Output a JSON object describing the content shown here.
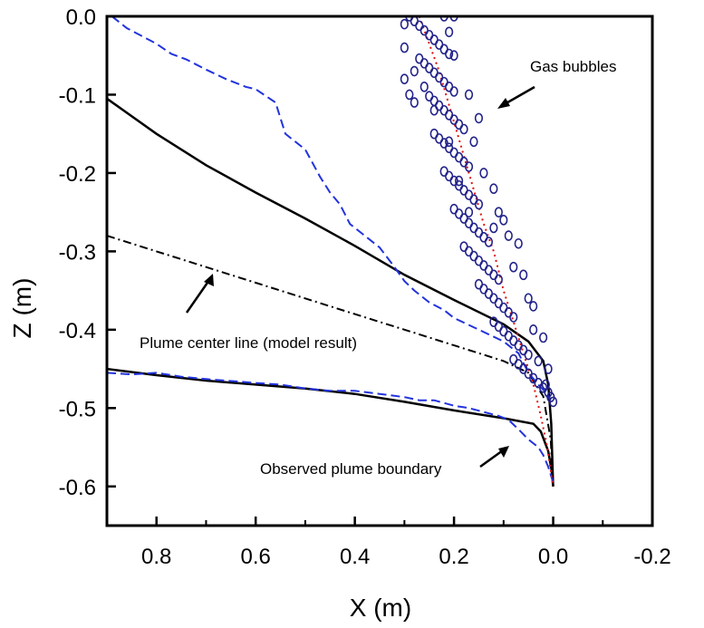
{
  "chart_data": {
    "type": "line",
    "title": "",
    "xlabel": "X (m)",
    "ylabel": "Z (m)",
    "xlim": [
      0.9,
      -0.2
    ],
    "ylim": [
      -0.65,
      0.0
    ],
    "x_reversed": true,
    "grid": false,
    "xticks": [
      0.8,
      0.6,
      0.4,
      0.2,
      0.0,
      -0.2
    ],
    "xtick_labels": [
      "0.8",
      "0.6",
      "0.4",
      "0.2",
      "0.0",
      "-0.2"
    ],
    "yticks": [
      0.0,
      -0.1,
      -0.2,
      -0.3,
      -0.4,
      -0.5,
      -0.6
    ],
    "ytick_labels": [
      "0.0",
      "-0.1",
      "-0.2",
      "-0.3",
      "-0.4",
      "-0.5",
      "-0.6"
    ],
    "series": [
      {
        "style": "solid",
        "color": "#000000",
        "points": [
          [
            0.9,
            -0.105
          ],
          [
            0.8,
            -0.15
          ],
          [
            0.7,
            -0.19
          ],
          [
            0.6,
            -0.225
          ],
          [
            0.5,
            -0.258
          ],
          [
            0.4,
            -0.293
          ],
          [
            0.3,
            -0.33
          ],
          [
            0.2,
            -0.362
          ],
          [
            0.1,
            -0.393
          ],
          [
            0.05,
            -0.415
          ],
          [
            0.02,
            -0.44
          ],
          [
            0.01,
            -0.47
          ],
          [
            0.004,
            -0.52
          ],
          [
            0.0,
            -0.6
          ]
        ]
      },
      {
        "style": "solid",
        "color": "#000000",
        "points": [
          [
            0.9,
            -0.45
          ],
          [
            0.8,
            -0.458
          ],
          [
            0.7,
            -0.465
          ],
          [
            0.6,
            -0.47
          ],
          [
            0.5,
            -0.475
          ],
          [
            0.4,
            -0.482
          ],
          [
            0.3,
            -0.492
          ],
          [
            0.2,
            -0.503
          ],
          [
            0.1,
            -0.513
          ],
          [
            0.04,
            -0.52
          ],
          [
            0.025,
            -0.53
          ],
          [
            0.01,
            -0.555
          ],
          [
            0.003,
            -0.58
          ],
          [
            0.0,
            -0.6
          ]
        ]
      },
      {
        "style": "dashdot",
        "color": "#000000",
        "points": [
          [
            0.9,
            -0.28
          ],
          [
            0.8,
            -0.3
          ],
          [
            0.7,
            -0.32
          ],
          [
            0.6,
            -0.34
          ],
          [
            0.5,
            -0.36
          ],
          [
            0.4,
            -0.38
          ],
          [
            0.3,
            -0.4
          ],
          [
            0.2,
            -0.42
          ],
          [
            0.1,
            -0.44
          ],
          [
            0.05,
            -0.455
          ],
          [
            0.02,
            -0.485
          ],
          [
            0.005,
            -0.54
          ],
          [
            0.0,
            -0.6
          ]
        ]
      },
      {
        "style": "dashed",
        "color": "#2233dd",
        "points": [
          [
            0.89,
            0.0
          ],
          [
            0.86,
            -0.015
          ],
          [
            0.8,
            -0.035
          ],
          [
            0.77,
            -0.048
          ],
          [
            0.74,
            -0.055
          ],
          [
            0.7,
            -0.068
          ],
          [
            0.66,
            -0.08
          ],
          [
            0.62,
            -0.09
          ],
          [
            0.6,
            -0.093
          ],
          [
            0.56,
            -0.11
          ],
          [
            0.54,
            -0.15
          ],
          [
            0.5,
            -0.17
          ],
          [
            0.47,
            -0.205
          ],
          [
            0.45,
            -0.225
          ],
          [
            0.43,
            -0.24
          ],
          [
            0.41,
            -0.265
          ],
          [
            0.38,
            -0.28
          ],
          [
            0.35,
            -0.295
          ],
          [
            0.32,
            -0.32
          ],
          [
            0.3,
            -0.338
          ],
          [
            0.28,
            -0.35
          ],
          [
            0.25,
            -0.365
          ],
          [
            0.22,
            -0.375
          ],
          [
            0.2,
            -0.385
          ],
          [
            0.15,
            -0.4
          ],
          [
            0.1,
            -0.415
          ],
          [
            0.07,
            -0.43
          ],
          [
            0.05,
            -0.455
          ],
          [
            0.03,
            -0.47
          ],
          [
            0.015,
            -0.48
          ],
          [
            0.005,
            -0.49
          ]
        ]
      },
      {
        "style": "dashed",
        "color": "#2233dd",
        "points": [
          [
            0.9,
            -0.455
          ],
          [
            0.85,
            -0.457
          ],
          [
            0.8,
            -0.455
          ],
          [
            0.75,
            -0.46
          ],
          [
            0.7,
            -0.463
          ],
          [
            0.6,
            -0.468
          ],
          [
            0.55,
            -0.47
          ],
          [
            0.5,
            -0.475
          ],
          [
            0.45,
            -0.478
          ],
          [
            0.4,
            -0.478
          ],
          [
            0.35,
            -0.482
          ],
          [
            0.3,
            -0.486
          ],
          [
            0.27,
            -0.49
          ],
          [
            0.24,
            -0.49
          ],
          [
            0.2,
            -0.497
          ],
          [
            0.17,
            -0.5
          ],
          [
            0.14,
            -0.505
          ],
          [
            0.11,
            -0.51
          ],
          [
            0.09,
            -0.515
          ],
          [
            0.07,
            -0.527
          ],
          [
            0.05,
            -0.54
          ],
          [
            0.03,
            -0.55
          ],
          [
            0.02,
            -0.56
          ],
          [
            0.01,
            -0.575
          ],
          [
            0.0,
            -0.595
          ]
        ]
      },
      {
        "style": "dotted",
        "color": "#dd1111",
        "points": [
          [
            0.27,
            0.0
          ],
          [
            0.23,
            -0.07
          ],
          [
            0.2,
            -0.135
          ],
          [
            0.17,
            -0.2
          ],
          [
            0.14,
            -0.265
          ],
          [
            0.12,
            -0.3
          ],
          [
            0.1,
            -0.35
          ],
          [
            0.08,
            -0.39
          ],
          [
            0.06,
            -0.43
          ],
          [
            0.04,
            -0.47
          ],
          [
            0.025,
            -0.51
          ],
          [
            0.012,
            -0.55
          ],
          [
            0.0,
            -0.6
          ]
        ]
      },
      {
        "style": "scatter",
        "color": "#22228a",
        "points": [
          [
            0.29,
            -0.0
          ],
          [
            0.28,
            -0.006
          ],
          [
            0.27,
            -0.012
          ],
          [
            0.26,
            -0.018
          ],
          [
            0.25,
            -0.024
          ],
          [
            0.24,
            -0.03
          ],
          [
            0.23,
            -0.036
          ],
          [
            0.22,
            -0.042
          ],
          [
            0.21,
            -0.048
          ],
          [
            0.27,
            -0.054
          ],
          [
            0.26,
            -0.06
          ],
          [
            0.25,
            -0.066
          ],
          [
            0.24,
            -0.072
          ],
          [
            0.23,
            -0.078
          ],
          [
            0.22,
            -0.084
          ],
          [
            0.21,
            -0.09
          ],
          [
            0.2,
            -0.096
          ],
          [
            0.25,
            -0.102
          ],
          [
            0.24,
            -0.108
          ],
          [
            0.23,
            -0.114
          ],
          [
            0.22,
            -0.12
          ],
          [
            0.21,
            -0.126
          ],
          [
            0.2,
            -0.132
          ],
          [
            0.19,
            -0.138
          ],
          [
            0.18,
            -0.144
          ],
          [
            0.24,
            -0.15
          ],
          [
            0.23,
            -0.156
          ],
          [
            0.22,
            -0.162
          ],
          [
            0.21,
            -0.168
          ],
          [
            0.2,
            -0.174
          ],
          [
            0.19,
            -0.18
          ],
          [
            0.18,
            -0.186
          ],
          [
            0.17,
            -0.192
          ],
          [
            0.22,
            -0.198
          ],
          [
            0.21,
            -0.204
          ],
          [
            0.2,
            -0.21
          ],
          [
            0.19,
            -0.216
          ],
          [
            0.18,
            -0.222
          ],
          [
            0.17,
            -0.228
          ],
          [
            0.16,
            -0.234
          ],
          [
            0.15,
            -0.24
          ],
          [
            0.2,
            -0.246
          ],
          [
            0.19,
            -0.252
          ],
          [
            0.18,
            -0.258
          ],
          [
            0.17,
            -0.264
          ],
          [
            0.16,
            -0.27
          ],
          [
            0.15,
            -0.276
          ],
          [
            0.14,
            -0.282
          ],
          [
            0.13,
            -0.288
          ],
          [
            0.18,
            -0.294
          ],
          [
            0.17,
            -0.3
          ],
          [
            0.16,
            -0.306
          ],
          [
            0.15,
            -0.312
          ],
          [
            0.14,
            -0.318
          ],
          [
            0.13,
            -0.324
          ],
          [
            0.12,
            -0.33
          ],
          [
            0.11,
            -0.336
          ],
          [
            0.15,
            -0.342
          ],
          [
            0.14,
            -0.348
          ],
          [
            0.13,
            -0.354
          ],
          [
            0.12,
            -0.36
          ],
          [
            0.11,
            -0.366
          ],
          [
            0.1,
            -0.372
          ],
          [
            0.09,
            -0.378
          ],
          [
            0.08,
            -0.384
          ],
          [
            0.12,
            -0.39
          ],
          [
            0.11,
            -0.396
          ],
          [
            0.1,
            -0.402
          ],
          [
            0.09,
            -0.408
          ],
          [
            0.08,
            -0.414
          ],
          [
            0.07,
            -0.42
          ],
          [
            0.06,
            -0.426
          ],
          [
            0.05,
            -0.432
          ],
          [
            0.08,
            -0.438
          ],
          [
            0.07,
            -0.444
          ],
          [
            0.06,
            -0.45
          ],
          [
            0.05,
            -0.456
          ],
          [
            0.04,
            -0.462
          ],
          [
            0.03,
            -0.468
          ],
          [
            0.02,
            -0.474
          ],
          [
            0.01,
            -0.48
          ],
          [
            0.005,
            -0.486
          ],
          [
            0.0,
            -0.492
          ],
          [
            0.3,
            -0.01
          ],
          [
            0.3,
            -0.04
          ],
          [
            0.3,
            -0.08
          ],
          [
            0.29,
            -0.1
          ],
          [
            0.28,
            -0.11
          ],
          [
            0.22,
            -0.0
          ],
          [
            0.2,
            -0.0
          ],
          [
            0.21,
            -0.02
          ],
          [
            0.2,
            -0.05
          ],
          [
            0.17,
            -0.1
          ],
          [
            0.15,
            -0.13
          ],
          [
            0.16,
            -0.16
          ],
          [
            0.14,
            -0.2
          ],
          [
            0.12,
            -0.22
          ],
          [
            0.11,
            -0.25
          ],
          [
            0.09,
            -0.28
          ],
          [
            0.08,
            -0.32
          ],
          [
            0.05,
            -0.36
          ],
          [
            0.04,
            -0.4
          ],
          [
            0.03,
            -0.44
          ],
          [
            0.015,
            -0.47
          ],
          [
            0.01,
            -0.45
          ],
          [
            0.02,
            -0.41
          ],
          [
            0.04,
            -0.37
          ],
          [
            0.06,
            -0.33
          ],
          [
            0.07,
            -0.29
          ],
          [
            0.1,
            -0.26
          ],
          [
            0.12,
            -0.27
          ],
          [
            0.17,
            -0.25
          ],
          [
            0.19,
            -0.21
          ],
          [
            0.21,
            -0.16
          ],
          [
            0.24,
            -0.12
          ],
          [
            0.26,
            -0.09
          ],
          [
            0.28,
            -0.07
          ]
        ]
      }
    ],
    "annotations": {
      "gas_bubbles": "Gas bubbles",
      "center_line": "Plume center line (model result)",
      "boundary": "Observed plume boundary"
    }
  }
}
